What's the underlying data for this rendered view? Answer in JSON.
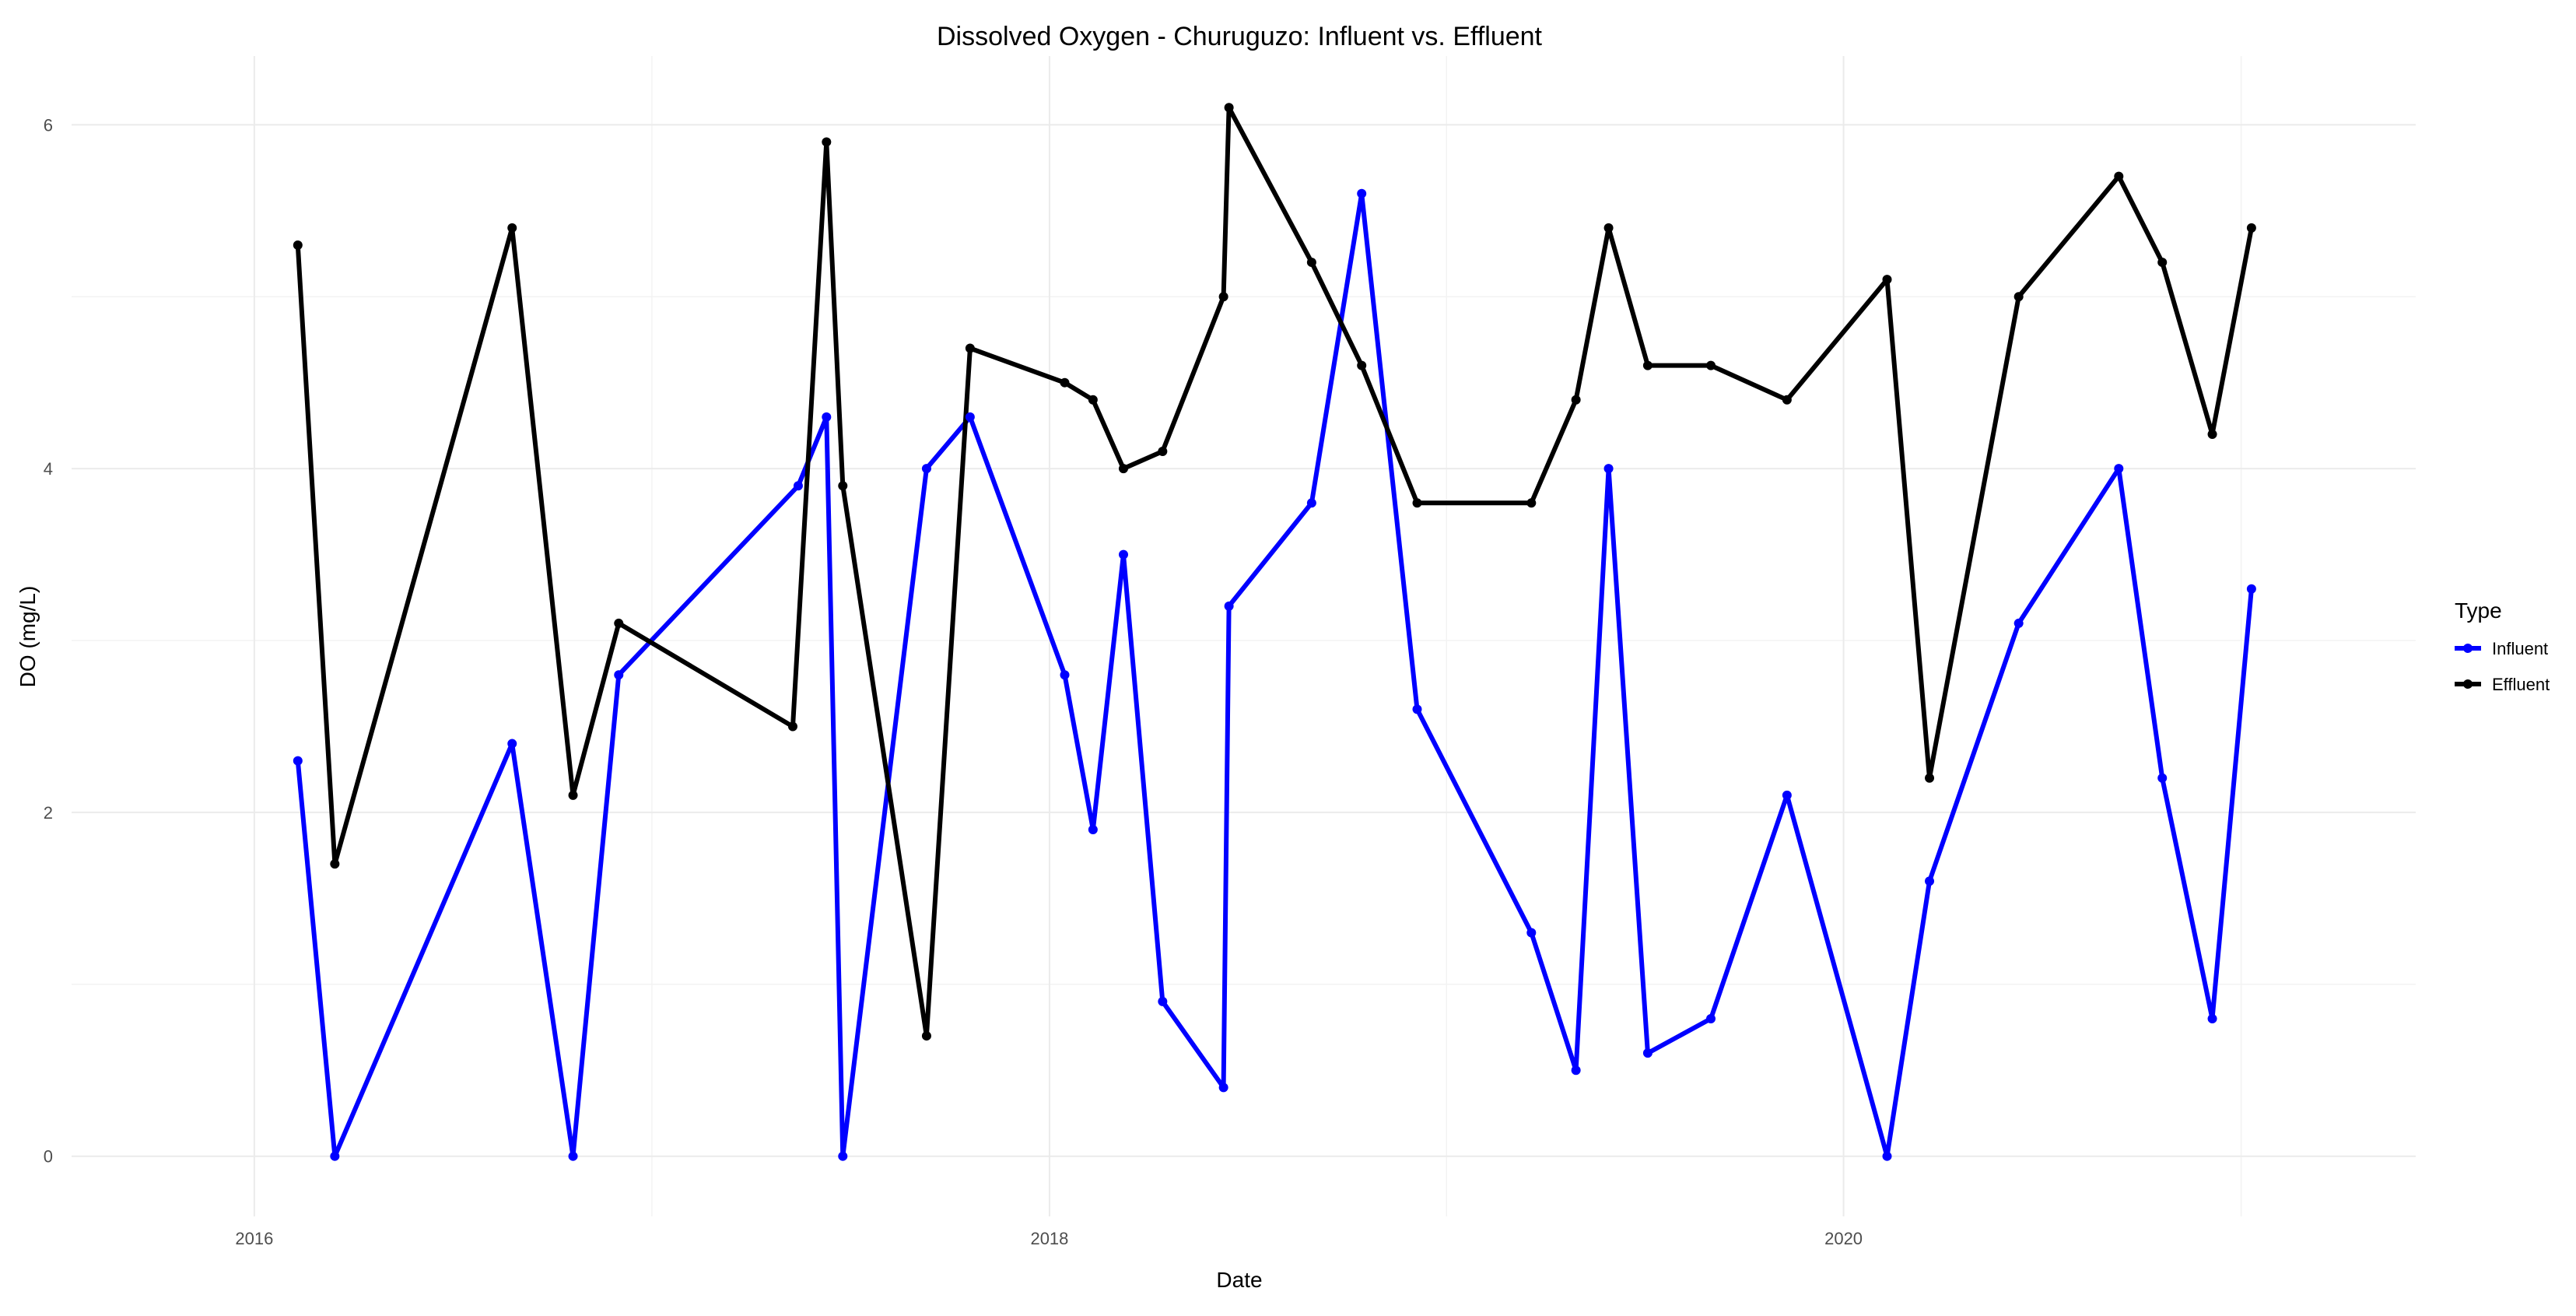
{
  "chart_data": {
    "type": "line",
    "title": "Dissolved Oxygen - Churuguzo: Influent vs. Effluent",
    "xlabel": "Date",
    "ylabel": "DO (mg/L)",
    "x_axis": {
      "type": "date",
      "range": [
        "2015-07-17",
        "2021-06-10"
      ],
      "ticks": [
        "2016-01-01",
        "2018-01-01",
        "2020-01-01"
      ],
      "tick_labels": [
        "2016",
        "2018",
        "2020"
      ]
    },
    "y_axis": {
      "range": [
        -0.35,
        6.4
      ],
      "ticks": [
        0,
        2,
        4,
        6
      ],
      "tick_labels": [
        "0",
        "2",
        "4",
        "6"
      ]
    },
    "grid": true,
    "legend": {
      "title": "Type",
      "position": "right"
    },
    "series": [
      {
        "name": "Influent",
        "color": "#0000ff",
        "points": [
          {
            "x": "2016-02-10",
            "y": 2.3
          },
          {
            "x": "2016-03-15",
            "y": 0.0
          },
          {
            "x": "2016-08-25",
            "y": 2.4
          },
          {
            "x": "2016-10-20",
            "y": 0.0
          },
          {
            "x": "2016-12-01",
            "y": 2.8
          },
          {
            "x": "2017-05-15",
            "y": 3.9
          },
          {
            "x": "2017-06-10",
            "y": 4.3
          },
          {
            "x": "2017-06-25",
            "y": 0.0
          },
          {
            "x": "2017-09-10",
            "y": 4.0
          },
          {
            "x": "2017-10-20",
            "y": 4.3
          },
          {
            "x": "2018-01-15",
            "y": 2.8
          },
          {
            "x": "2018-02-10",
            "y": 1.9
          },
          {
            "x": "2018-03-10",
            "y": 3.5
          },
          {
            "x": "2018-04-15",
            "y": 0.9
          },
          {
            "x": "2018-06-10",
            "y": 0.4
          },
          {
            "x": "2018-06-15",
            "y": 3.2
          },
          {
            "x": "2018-08-30",
            "y": 3.8
          },
          {
            "x": "2018-10-15",
            "y": 5.6
          },
          {
            "x": "2018-12-05",
            "y": 2.6
          },
          {
            "x": "2019-03-20",
            "y": 1.3
          },
          {
            "x": "2019-04-30",
            "y": 0.5
          },
          {
            "x": "2019-05-30",
            "y": 4.0
          },
          {
            "x": "2019-07-05",
            "y": 0.6
          },
          {
            "x": "2019-09-01",
            "y": 0.8
          },
          {
            "x": "2019-11-10",
            "y": 2.1
          },
          {
            "x": "2020-02-10",
            "y": 0.0
          },
          {
            "x": "2020-03-20",
            "y": 1.6
          },
          {
            "x": "2020-06-10",
            "y": 3.1
          },
          {
            "x": "2020-09-10",
            "y": 4.0
          },
          {
            "x": "2020-10-20",
            "y": 2.2
          },
          {
            "x": "2020-12-05",
            "y": 0.8
          },
          {
            "x": "2021-01-10",
            "y": 3.3
          }
        ]
      },
      {
        "name": "Effluent",
        "color": "#000000",
        "points": [
          {
            "x": "2016-02-10",
            "y": 5.3
          },
          {
            "x": "2016-03-15",
            "y": 1.7
          },
          {
            "x": "2016-08-25",
            "y": 5.4
          },
          {
            "x": "2016-10-20",
            "y": 2.1
          },
          {
            "x": "2016-12-01",
            "y": 3.1
          },
          {
            "x": "2017-05-10",
            "y": 2.5
          },
          {
            "x": "2017-06-10",
            "y": 5.9
          },
          {
            "x": "2017-06-25",
            "y": 3.9
          },
          {
            "x": "2017-09-10",
            "y": 0.7
          },
          {
            "x": "2017-10-20",
            "y": 4.7
          },
          {
            "x": "2018-01-15",
            "y": 4.5
          },
          {
            "x": "2018-02-10",
            "y": 4.4
          },
          {
            "x": "2018-03-10",
            "y": 4.0
          },
          {
            "x": "2018-04-15",
            "y": 4.1
          },
          {
            "x": "2018-06-10",
            "y": 5.0
          },
          {
            "x": "2018-06-15",
            "y": 6.1
          },
          {
            "x": "2018-08-30",
            "y": 5.2
          },
          {
            "x": "2018-10-15",
            "y": 4.6
          },
          {
            "x": "2018-12-05",
            "y": 3.8
          },
          {
            "x": "2019-03-20",
            "y": 3.8
          },
          {
            "x": "2019-04-30",
            "y": 4.4
          },
          {
            "x": "2019-05-30",
            "y": 5.4
          },
          {
            "x": "2019-07-05",
            "y": 4.6
          },
          {
            "x": "2019-09-01",
            "y": 4.6
          },
          {
            "x": "2019-11-10",
            "y": 4.4
          },
          {
            "x": "2020-02-10",
            "y": 5.1
          },
          {
            "x": "2020-03-20",
            "y": 2.2
          },
          {
            "x": "2020-06-10",
            "y": 5.0
          },
          {
            "x": "2020-09-10",
            "y": 5.7
          },
          {
            "x": "2020-10-20",
            "y": 5.2
          },
          {
            "x": "2020-12-05",
            "y": 4.2
          },
          {
            "x": "2021-01-10",
            "y": 5.4
          }
        ]
      }
    ]
  }
}
